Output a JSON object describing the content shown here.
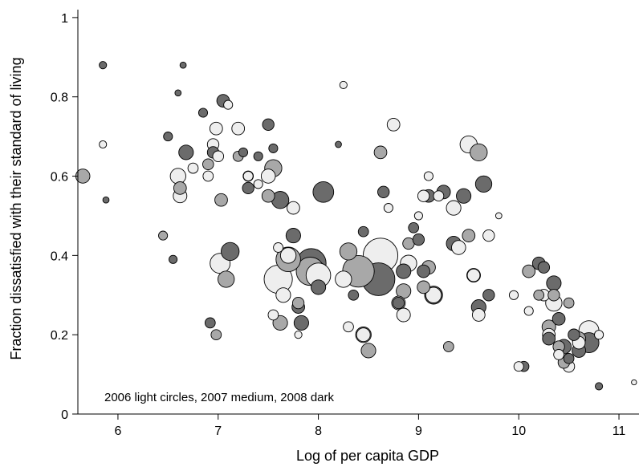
{
  "chart_data": {
    "type": "scatter",
    "title": "",
    "xlabel": "Log of per capita GDP",
    "ylabel": "Fraction dissatisfied with their standard of living",
    "note": "2006 light circles, 2007 medium, 2008 dark",
    "xlim": [
      5.6,
      11.2
    ],
    "ylim": [
      0,
      1.02
    ],
    "x_ticks": [
      6,
      7,
      8,
      9,
      10,
      11
    ],
    "x_tick_labels": [
      "6",
      "7",
      "8",
      "9",
      "10",
      "11"
    ],
    "y_ticks": [
      0,
      0.2,
      0.4,
      0.6,
      0.8,
      1
    ],
    "y_tick_labels": [
      "0",
      "0.2",
      "0.4",
      "0.6",
      "0.8",
      "1"
    ],
    "grid": false,
    "legend": "none",
    "colors": {
      "2006": "#eeeeee",
      "2007": "#a8a8a8",
      "2008": "#6b6b6b"
    },
    "series": [
      {
        "year": "2006",
        "points": [
          [
            5.85,
            0.68,
            0.4
          ],
          [
            6.6,
            0.6,
            1.8
          ],
          [
            6.62,
            0.55,
            1.4
          ],
          [
            6.75,
            0.62,
            0.8
          ],
          [
            6.9,
            0.6,
            0.8
          ],
          [
            6.95,
            0.68,
            1.0
          ],
          [
            6.98,
            0.72,
            1.2
          ],
          [
            7.0,
            0.65,
            0.9
          ],
          [
            7.02,
            0.38,
            3.0
          ],
          [
            7.1,
            0.78,
            0.6
          ],
          [
            7.2,
            0.72,
            1.2
          ],
          [
            7.3,
            0.6,
            0.7
          ],
          [
            7.4,
            0.58,
            0.6
          ],
          [
            7.5,
            0.6,
            1.5
          ],
          [
            7.55,
            0.25,
            0.8
          ],
          [
            7.6,
            0.42,
            0.7
          ],
          [
            7.65,
            0.3,
            1.6
          ],
          [
            7.7,
            0.4,
            1.8
          ],
          [
            7.75,
            0.52,
            1.2
          ],
          [
            7.8,
            0.2,
            0.4
          ],
          [
            7.6,
            0.34,
            6.0
          ],
          [
            8.0,
            0.35,
            4.5
          ],
          [
            8.25,
            0.34,
            2.0
          ],
          [
            8.3,
            0.22,
            0.8
          ],
          [
            8.45,
            0.2,
            1.4
          ],
          [
            8.62,
            0.4,
            9.0
          ],
          [
            8.25,
            0.83,
            0.4
          ],
          [
            8.7,
            0.52,
            0.6
          ],
          [
            8.75,
            0.73,
            1.2
          ],
          [
            8.8,
            0.28,
            1.4
          ],
          [
            8.85,
            0.25,
            1.4
          ],
          [
            8.9,
            0.38,
            2.0
          ],
          [
            9.0,
            0.5,
            0.5
          ],
          [
            9.05,
            0.55,
            1.0
          ],
          [
            9.1,
            0.6,
            0.6
          ],
          [
            9.15,
            0.3,
            1.8
          ],
          [
            9.2,
            0.55,
            0.8
          ],
          [
            9.35,
            0.52,
            1.6
          ],
          [
            9.4,
            0.42,
            1.5
          ],
          [
            9.5,
            0.68,
            2.2
          ],
          [
            9.55,
            0.35,
            1.2
          ],
          [
            9.6,
            0.25,
            1.2
          ],
          [
            9.7,
            0.45,
            1.0
          ],
          [
            9.8,
            0.5,
            0.3
          ],
          [
            9.95,
            0.3,
            0.6
          ],
          [
            10.0,
            0.12,
            0.7
          ],
          [
            10.1,
            0.26,
            0.6
          ],
          [
            10.25,
            0.3,
            1.0
          ],
          [
            10.3,
            0.2,
            1.2
          ],
          [
            10.35,
            0.28,
            2.0
          ],
          [
            10.4,
            0.15,
            0.8
          ],
          [
            10.5,
            0.12,
            1.0
          ],
          [
            10.6,
            0.18,
            1.2
          ],
          [
            10.7,
            0.21,
            3.0
          ],
          [
            10.8,
            0.2,
            0.6
          ],
          [
            11.15,
            0.08,
            0.2
          ]
        ]
      },
      {
        "year": "2007",
        "points": [
          [
            5.65,
            0.6,
            1.5
          ],
          [
            6.45,
            0.45,
            0.6
          ],
          [
            6.62,
            0.57,
            1.2
          ],
          [
            6.9,
            0.63,
            0.9
          ],
          [
            6.98,
            0.2,
            0.8
          ],
          [
            7.03,
            0.54,
            1.2
          ],
          [
            7.08,
            0.34,
            2.0
          ],
          [
            7.2,
            0.65,
            0.8
          ],
          [
            7.3,
            0.6,
            0.8
          ],
          [
            7.5,
            0.55,
            1.2
          ],
          [
            7.55,
            0.62,
            2.2
          ],
          [
            7.62,
            0.23,
            1.6
          ],
          [
            7.7,
            0.39,
            4.5
          ],
          [
            7.8,
            0.28,
            1.0
          ],
          [
            7.92,
            0.36,
            6.0
          ],
          [
            8.3,
            0.41,
            2.2
          ],
          [
            8.4,
            0.36,
            7.5
          ],
          [
            8.45,
            0.2,
            1.8
          ],
          [
            8.5,
            0.16,
            1.6
          ],
          [
            8.62,
            0.66,
            1.2
          ],
          [
            8.85,
            0.31,
            1.6
          ],
          [
            8.9,
            0.43,
            1.0
          ],
          [
            9.05,
            0.32,
            1.2
          ],
          [
            9.1,
            0.37,
            1.4
          ],
          [
            9.3,
            0.17,
            0.8
          ],
          [
            9.5,
            0.45,
            1.2
          ],
          [
            9.55,
            0.35,
            1.4
          ],
          [
            9.6,
            0.66,
            2.2
          ],
          [
            10.1,
            0.36,
            1.2
          ],
          [
            10.2,
            0.3,
            0.8
          ],
          [
            10.3,
            0.22,
            1.4
          ],
          [
            10.35,
            0.3,
            1.0
          ],
          [
            10.4,
            0.17,
            1.0
          ],
          [
            10.45,
            0.13,
            1.0
          ],
          [
            10.5,
            0.28,
            0.8
          ],
          [
            10.6,
            0.19,
            1.4
          ]
        ]
      },
      {
        "year": "2008",
        "points": [
          [
            5.85,
            0.88,
            0.4
          ],
          [
            5.88,
            0.54,
            0.3
          ],
          [
            6.5,
            0.7,
            0.6
          ],
          [
            6.55,
            0.39,
            0.5
          ],
          [
            6.6,
            0.81,
            0.3
          ],
          [
            6.65,
            0.88,
            0.3
          ],
          [
            6.68,
            0.66,
            1.6
          ],
          [
            6.85,
            0.76,
            0.6
          ],
          [
            6.92,
            0.23,
            0.8
          ],
          [
            6.95,
            0.66,
            1.0
          ],
          [
            7.05,
            0.79,
            1.2
          ],
          [
            7.12,
            0.41,
            2.4
          ],
          [
            7.25,
            0.66,
            0.6
          ],
          [
            7.3,
            0.57,
            1.0
          ],
          [
            7.4,
            0.65,
            0.6
          ],
          [
            7.5,
            0.73,
            1.0
          ],
          [
            7.55,
            0.67,
            0.6
          ],
          [
            7.62,
            0.54,
            2.2
          ],
          [
            7.75,
            0.45,
            1.6
          ],
          [
            7.8,
            0.27,
            1.2
          ],
          [
            7.83,
            0.23,
            1.6
          ],
          [
            7.93,
            0.38,
            6.5
          ],
          [
            8.0,
            0.32,
            1.6
          ],
          [
            8.05,
            0.56,
            3.2
          ],
          [
            8.2,
            0.68,
            0.3
          ],
          [
            8.35,
            0.3,
            0.8
          ],
          [
            8.45,
            0.46,
            0.8
          ],
          [
            8.6,
            0.34,
            8.0
          ],
          [
            8.65,
            0.56,
            1.0
          ],
          [
            8.8,
            0.28,
            1.0
          ],
          [
            8.85,
            0.36,
            1.6
          ],
          [
            8.95,
            0.47,
            0.8
          ],
          [
            9.0,
            0.44,
            1.0
          ],
          [
            9.05,
            0.36,
            1.2
          ],
          [
            9.1,
            0.55,
            1.2
          ],
          [
            9.15,
            0.3,
            2.4
          ],
          [
            9.25,
            0.56,
            1.4
          ],
          [
            9.35,
            0.43,
            1.6
          ],
          [
            9.45,
            0.55,
            1.6
          ],
          [
            9.6,
            0.27,
            1.6
          ],
          [
            9.65,
            0.58,
            2.0
          ],
          [
            9.7,
            0.3,
            1.0
          ],
          [
            10.05,
            0.12,
            0.8
          ],
          [
            10.2,
            0.38,
            1.2
          ],
          [
            10.25,
            0.37,
            1.0
          ],
          [
            10.3,
            0.19,
            1.2
          ],
          [
            10.35,
            0.33,
            1.6
          ],
          [
            10.4,
            0.24,
            1.2
          ],
          [
            10.45,
            0.17,
            1.6
          ],
          [
            10.5,
            0.14,
            0.8
          ],
          [
            10.55,
            0.2,
            1.0
          ],
          [
            10.6,
            0.16,
            1.4
          ],
          [
            10.7,
            0.18,
            3.0
          ],
          [
            10.8,
            0.07,
            0.4
          ]
        ]
      }
    ]
  }
}
